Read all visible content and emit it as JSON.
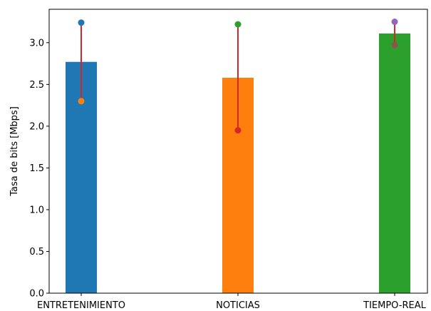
{
  "chart_data": {
    "type": "bar",
    "title": "",
    "xlabel": "",
    "ylabel": "Tasa de bits [Mbps]",
    "ylim": [
      0,
      3.4
    ],
    "yticks": [
      "0.0",
      "0.5",
      "1.0",
      "1.5",
      "2.0",
      "2.5",
      "3.0"
    ],
    "grid": false,
    "categories": [
      "ENTRETENIMIENTO",
      "NOTICIAS",
      "TIEMPO-REAL"
    ],
    "values": [
      2.77,
      2.58,
      3.11
    ],
    "bar_colors": [
      "#1f77b4",
      "#ff7f0e",
      "#2ca02c"
    ],
    "ranges": [
      {
        "category": "ENTRETENIMIENTO",
        "max": 3.24,
        "min": 2.3,
        "max_color": "#1f77b4",
        "min_color": "#ff7f0e"
      },
      {
        "category": "NOTICIAS",
        "max": 3.22,
        "min": 1.95,
        "max_color": "#2ca02c",
        "min_color": "#d62728"
      },
      {
        "category": "TIEMPO-REAL",
        "max": 3.25,
        "min": 2.97,
        "max_color": "#9467bd",
        "min_color": "#8c564b"
      }
    ],
    "range_line_color": "#d62728"
  }
}
